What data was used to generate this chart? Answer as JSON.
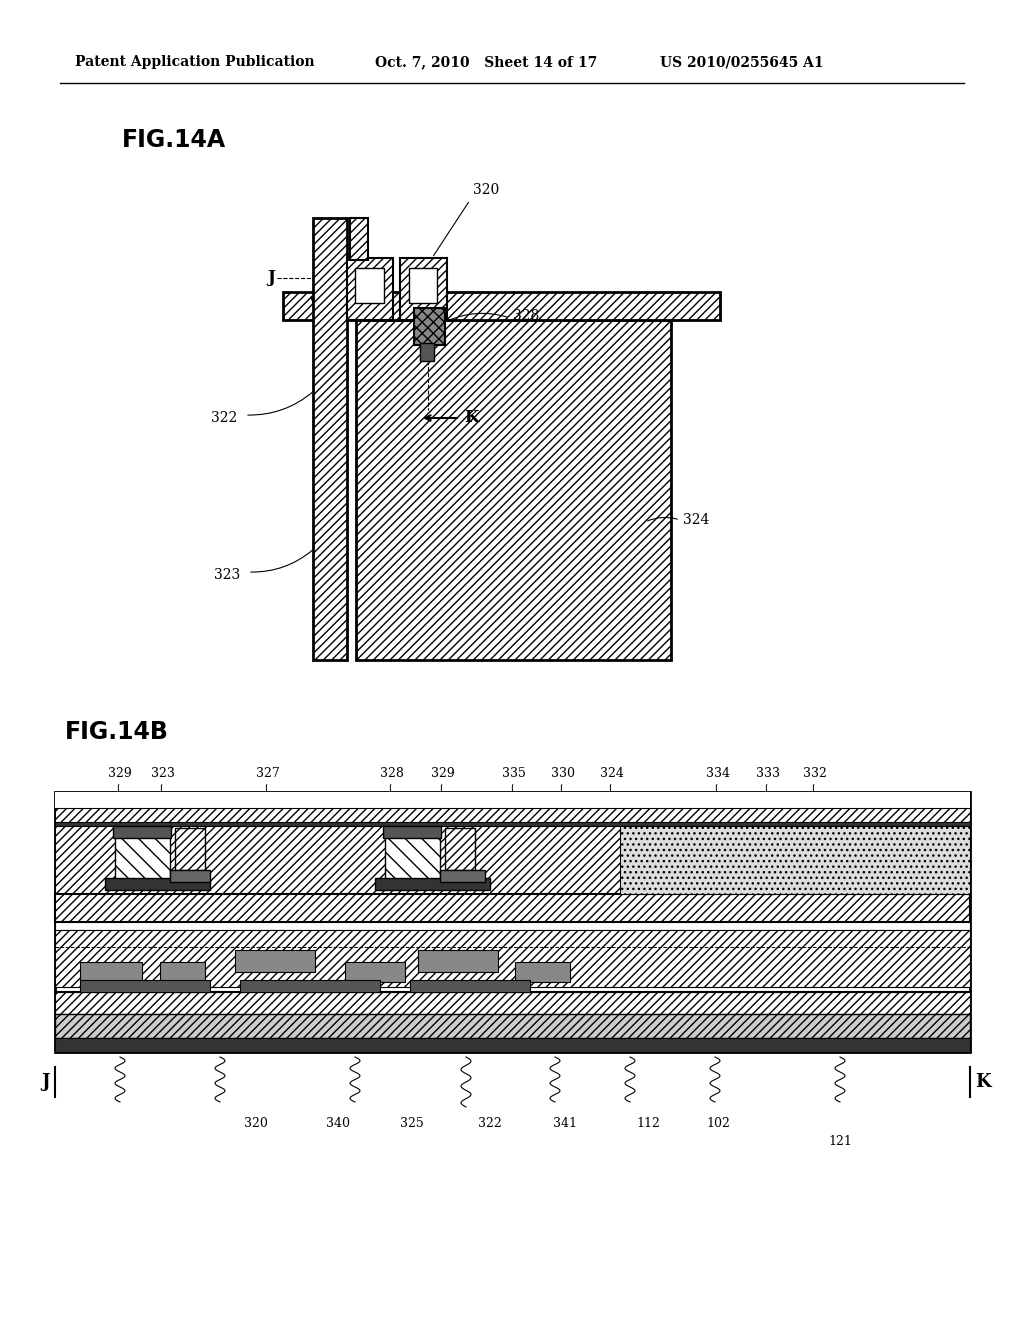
{
  "header_left": "Patent Application Publication",
  "header_mid": "Oct. 7, 2010   Sheet 14 of 17",
  "header_right": "US 2010/0255645 A1",
  "fig14a_label": "FIG.14A",
  "fig14b_label": "FIG.14B",
  "bg_color": "#ffffff",
  "line_color": "#000000",
  "top_labels_14b": [
    [
      "329",
      120
    ],
    [
      "323",
      163
    ],
    [
      "327",
      268
    ],
    [
      "328",
      392
    ],
    [
      "329",
      443
    ],
    [
      "335",
      514
    ],
    [
      "330",
      563
    ],
    [
      "324",
      612
    ],
    [
      "334",
      718
    ],
    [
      "333",
      768
    ],
    [
      "332",
      815
    ]
  ],
  "bot_labels_14b": [
    [
      "320",
      256
    ],
    [
      "340",
      338
    ],
    [
      "325",
      412
    ],
    [
      "322",
      490
    ],
    [
      "341",
      565
    ],
    [
      "112",
      648
    ],
    [
      "102",
      718
    ]
  ]
}
